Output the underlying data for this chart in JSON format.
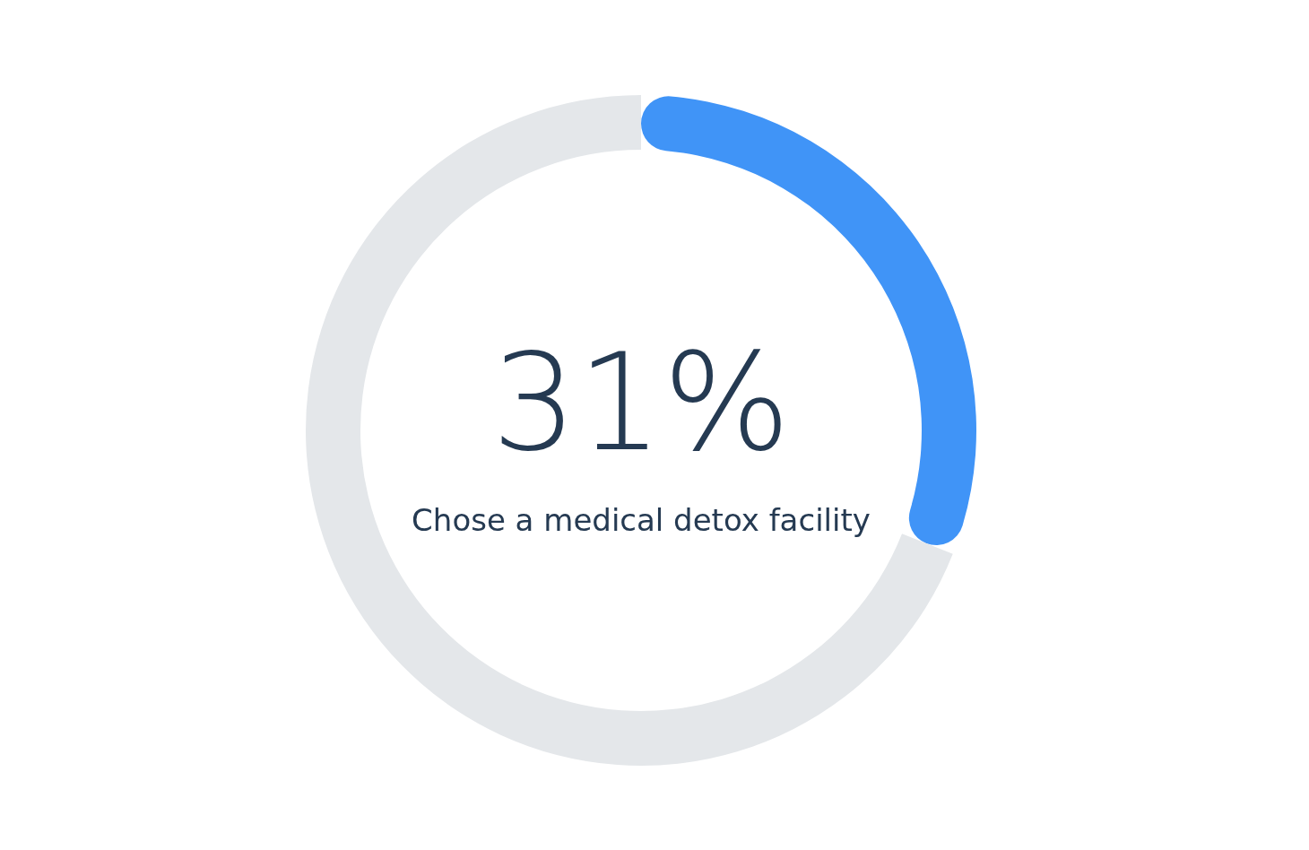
{
  "chart_data": {
    "type": "donut",
    "categories": [
      "Chose a medical detox facility",
      null
    ],
    "values": [
      31,
      69
    ],
    "colors": [
      "#4094f7",
      "#e4e7ea"
    ],
    "value_labels": [
      "31%",
      null
    ],
    "legend": false
  }
}
